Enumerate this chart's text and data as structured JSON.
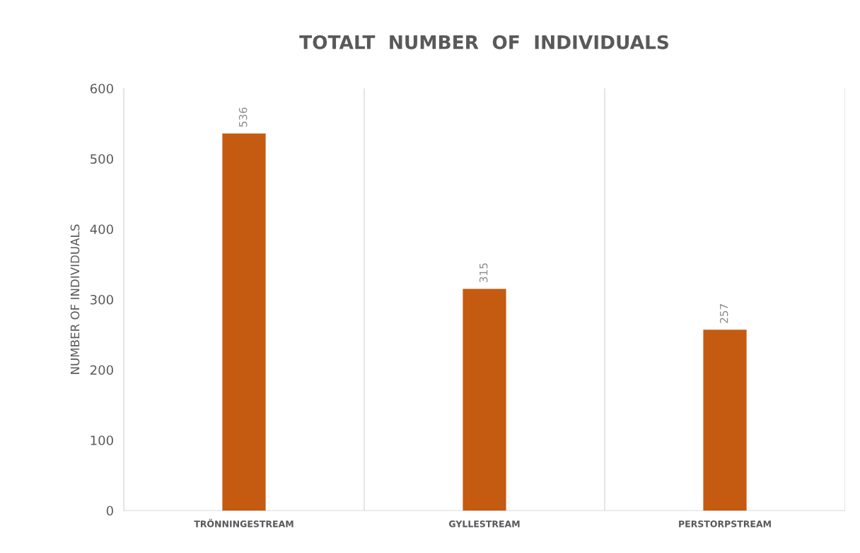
{
  "chart_data": {
    "type": "bar",
    "title": "TOTALT  NUMBER  OF  INDIVIDUALS",
    "ylabel": "NUMBER OF INDIVIDUALS",
    "categories": [
      "TRÖNNINGESTREAM",
      "GYLLESTREAM",
      "PERSTORPSTREAM"
    ],
    "values": [
      536,
      315,
      257
    ],
    "color": "#c55a11",
    "ylim": [
      0,
      600
    ],
    "yticks": [
      0,
      100,
      200,
      300,
      400,
      500,
      600
    ],
    "grid": "x",
    "data_labels": true
  }
}
